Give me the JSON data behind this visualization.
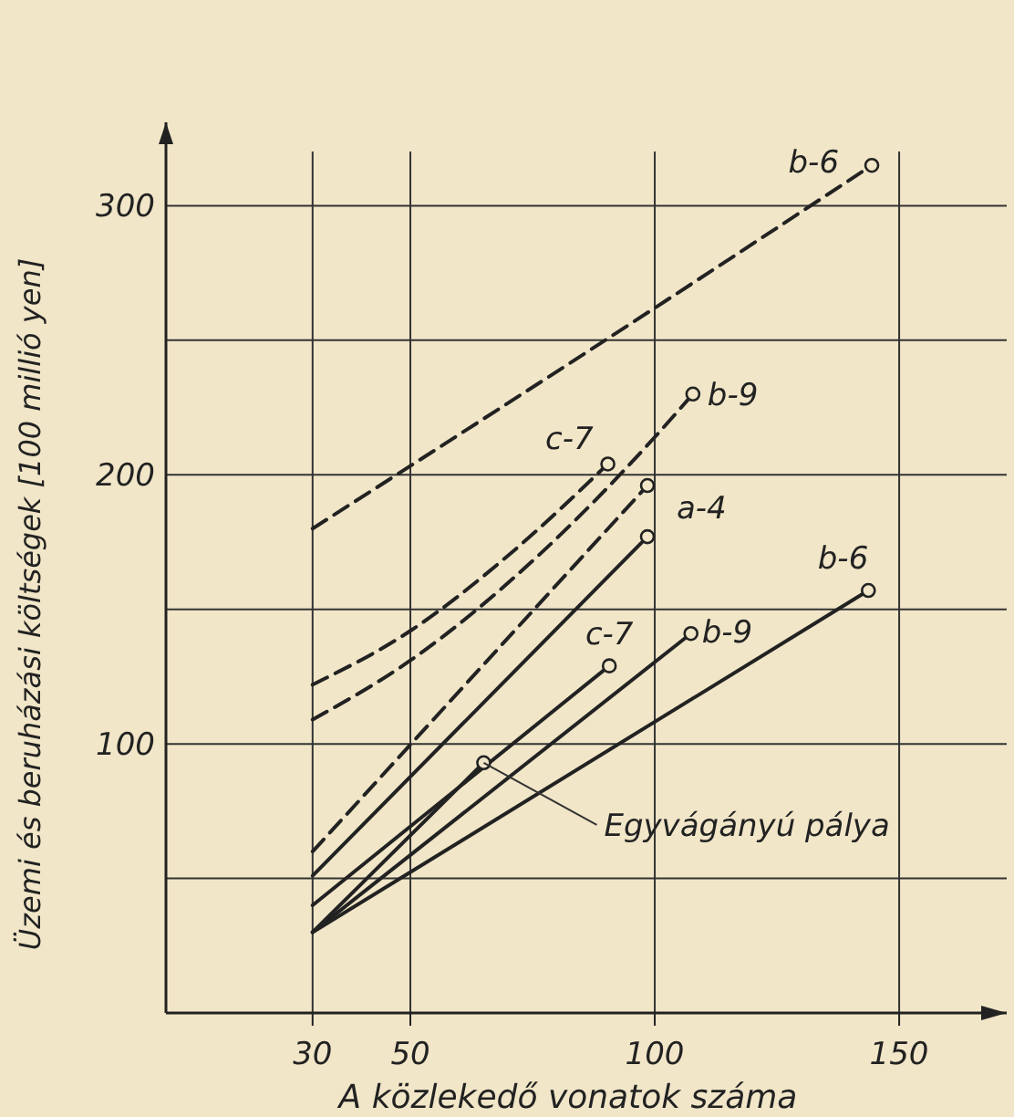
{
  "chart_data": {
    "type": "line",
    "xlabel": "A közlekedő vonatok száma",
    "ylabel": "Üzemi és beruházási költségek [100 millió yen]",
    "xlim": [
      0,
      172
    ],
    "ylim": [
      0,
      331
    ],
    "xticks": [
      30,
      50,
      100,
      150
    ],
    "yticks": [
      {
        "value": 50,
        "label": null
      },
      100,
      {
        "value": 150,
        "label": null
      },
      200,
      {
        "value": 250,
        "label": null
      },
      300
    ],
    "grid": true,
    "series": [
      {
        "name": "b-6",
        "color": "#222222",
        "line_style": "dashed",
        "x": [
          30,
          100,
          144.4
        ],
        "values": [
          180,
          262,
          315
        ]
      },
      {
        "name": "b-9",
        "color": "#222222",
        "line_style": "dashed",
        "x": [
          30,
          50,
          75,
          100,
          107.8
        ],
        "values": [
          109,
          131,
          168,
          214,
          230
        ]
      },
      {
        "name": "c-7",
        "color": "#222222",
        "line_style": "dashed",
        "x": [
          30,
          50,
          70,
          90.4
        ],
        "values": [
          122,
          142,
          170,
          204
        ]
      },
      {
        "color": "#222222",
        "line_style": "dashed",
        "x": [
          30,
          98.5
        ],
        "values": [
          60,
          196
        ]
      },
      {
        "name": "a-4",
        "color": "#222222",
        "line_style": "solid",
        "x": [
          30,
          98.5
        ],
        "values": [
          51,
          177
        ]
      },
      {
        "name": "c-7",
        "color": "#222222",
        "line_style": "solid",
        "x": [
          30,
          90.7
        ],
        "values": [
          40,
          129
        ]
      },
      {
        "name": "b-9",
        "color": "#222222",
        "line_style": "solid",
        "x": [
          30,
          107.4
        ],
        "values": [
          30,
          141
        ]
      },
      {
        "name": "b-6",
        "color": "#222222",
        "line_style": "solid",
        "x": [
          30,
          143.7
        ],
        "values": [
          30,
          157
        ]
      },
      {
        "color": "#222222",
        "line_style": "solid",
        "x": [
          30,
          65
        ],
        "values": [
          30,
          93
        ]
      },
      {
        "type": "scatter",
        "color": "#222222",
        "marker": "circle",
        "x": [
          144.4,
          107.8,
          90.4,
          98.5,
          98.5,
          90.7,
          107.4,
          143.7,
          65
        ],
        "values": [
          315,
          230,
          204,
          196,
          177,
          129,
          141,
          157,
          93
        ]
      }
    ],
    "annotations": [
      {
        "text": "Egyvágányú pálya",
        "x": 65,
        "y": 93
      }
    ]
  }
}
